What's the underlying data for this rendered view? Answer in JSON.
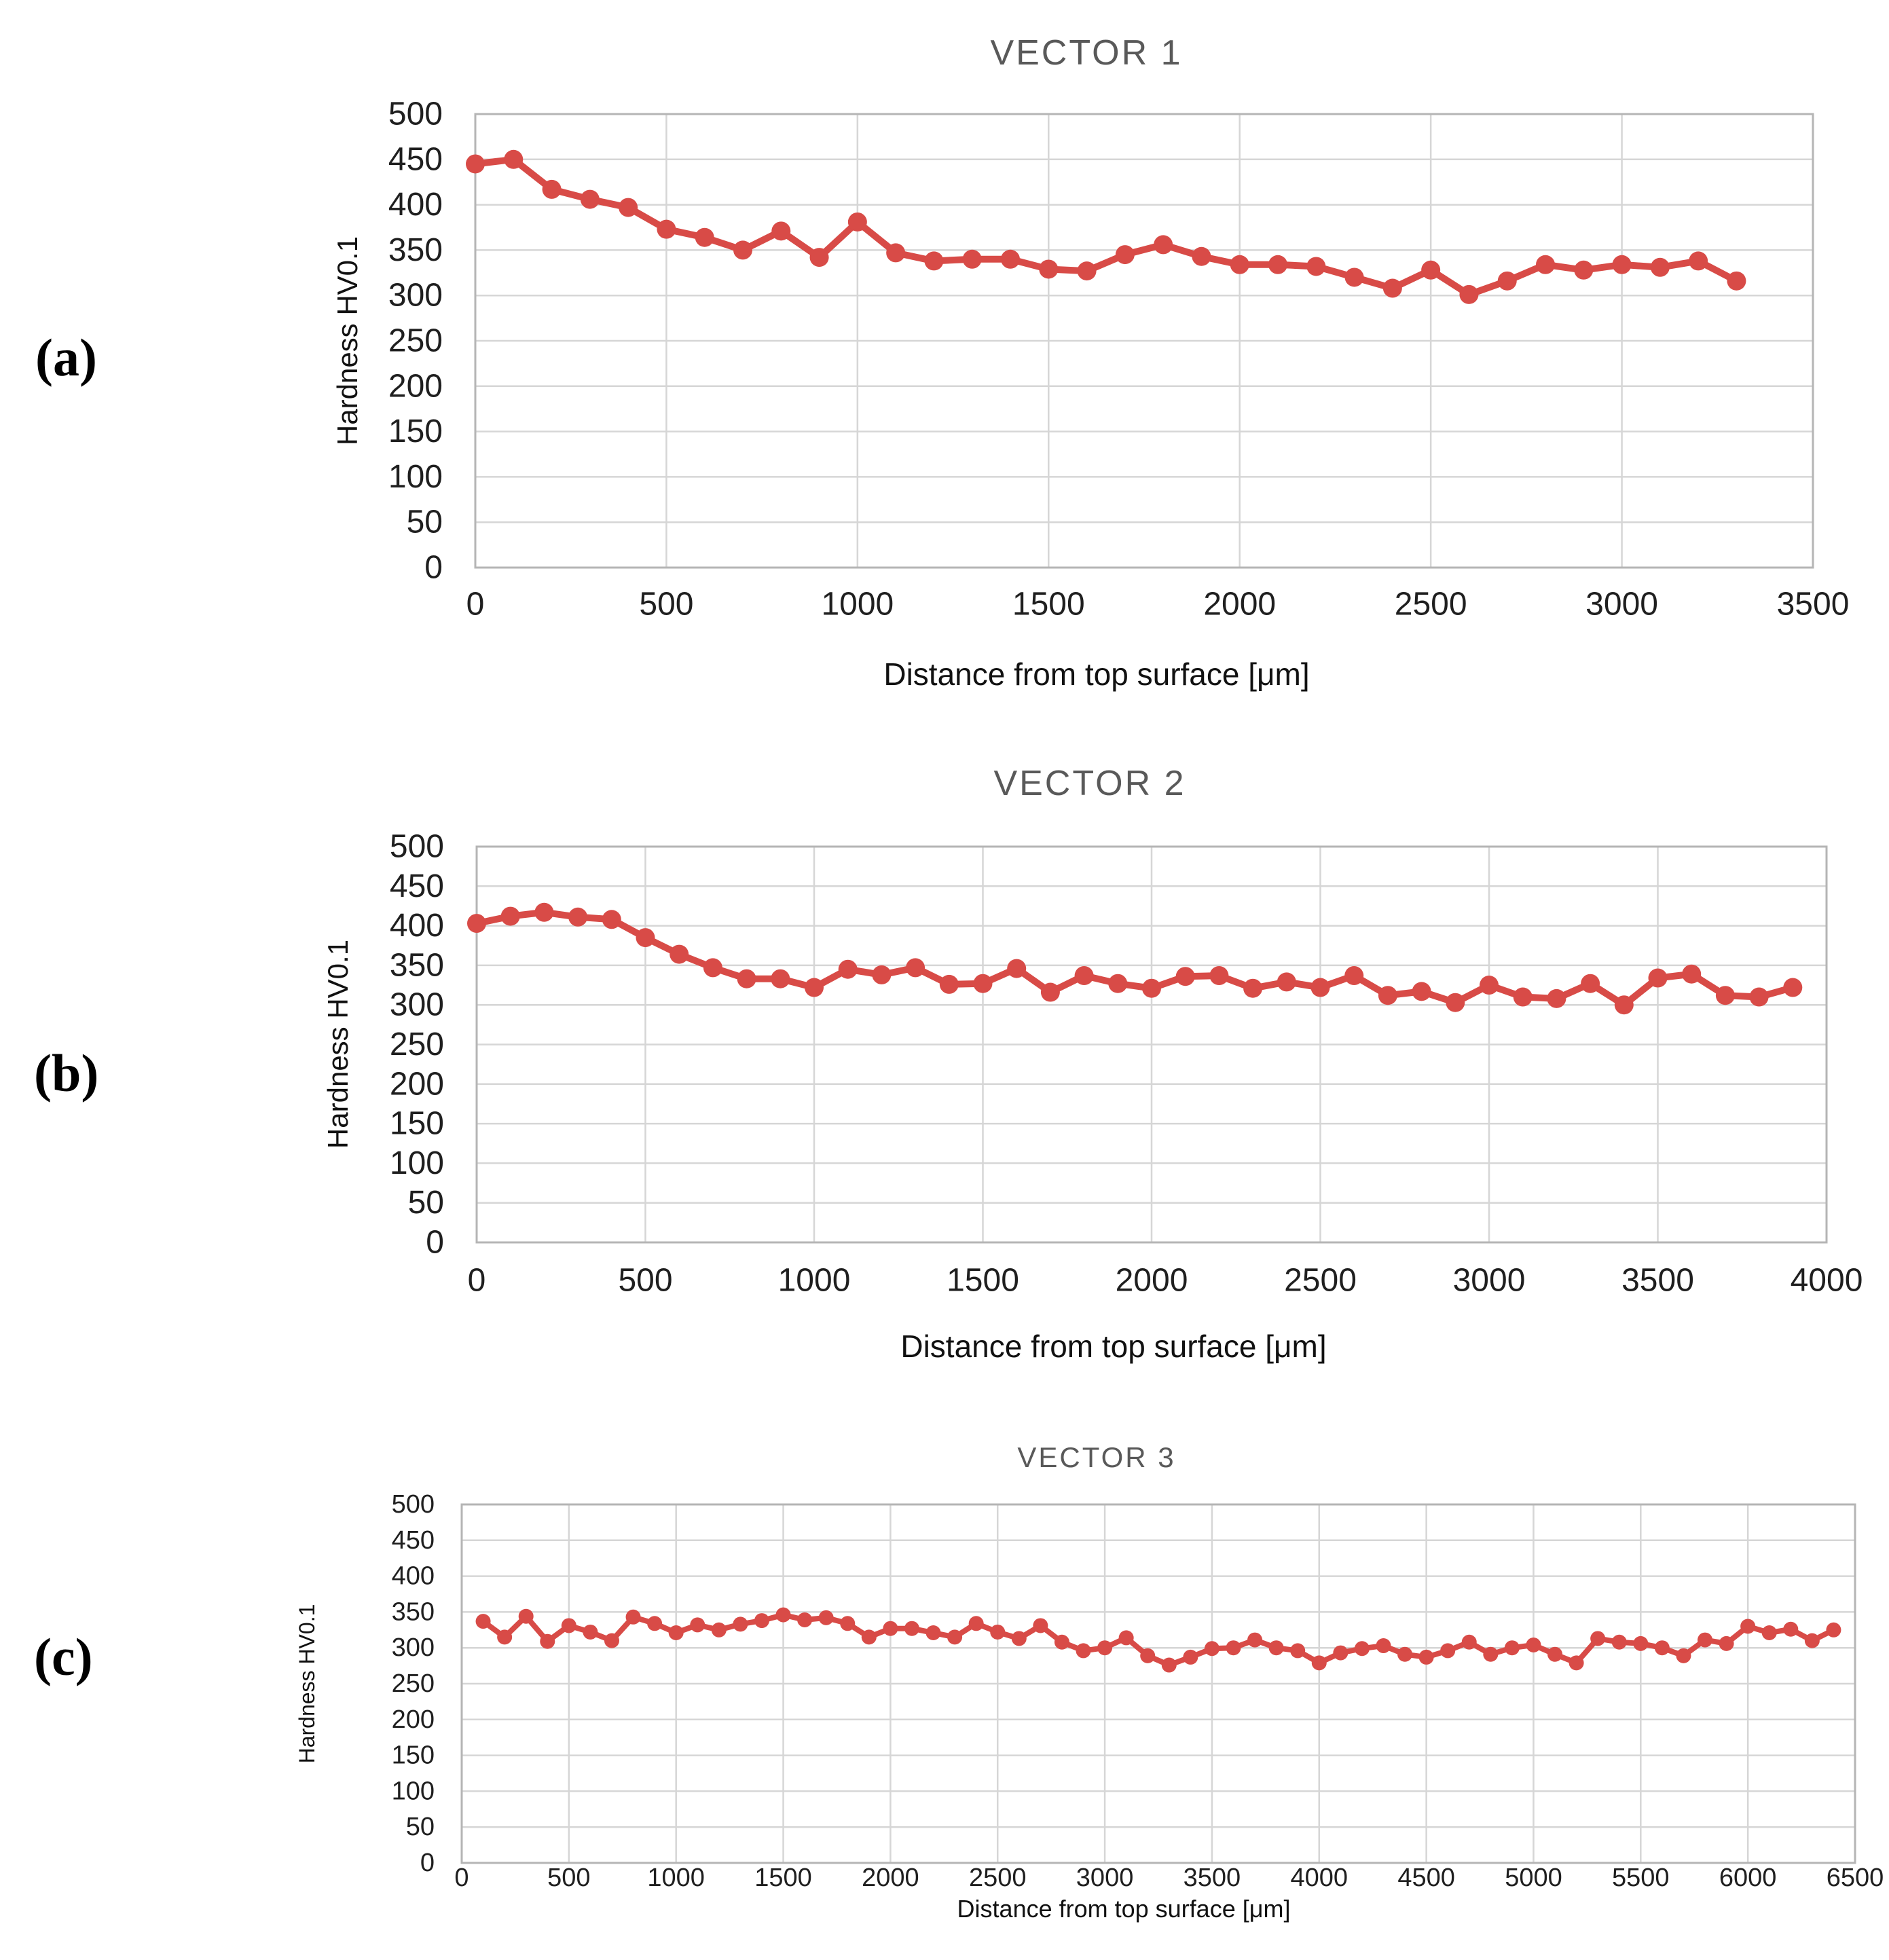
{
  "page": {
    "background": "#ffffff"
  },
  "colors": {
    "series": "#D84B47",
    "gridline": "#D6D6D6",
    "plot_border": "#B5B5B5",
    "tick_label": "#1F1F1F",
    "chart_title": "#595959",
    "axis_title": "#111111",
    "panel_label": "#000000"
  },
  "panels": [
    {
      "label": "(a)"
    },
    {
      "label": "(b)"
    },
    {
      "label": "(c)"
    }
  ],
  "chart_data": [
    {
      "type": "line",
      "title": "VECTOR 1",
      "xlabel": "Distance from top surface [μm]",
      "ylabel": "Hardness HV0.1",
      "xlim": [
        0,
        3500
      ],
      "ylim": [
        0,
        500
      ],
      "grid": true,
      "legend_position": "none",
      "marker": "circle",
      "series_color": "#D84B47",
      "xticks": [
        0,
        500,
        1000,
        1500,
        2000,
        2500,
        3000,
        3500
      ],
      "yticks": [
        0,
        50,
        100,
        150,
        200,
        250,
        300,
        350,
        400,
        450,
        500
      ],
      "x": [
        0,
        100,
        200,
        300,
        400,
        500,
        600,
        700,
        800,
        900,
        1000,
        1100,
        1200,
        1300,
        1400,
        1500,
        1600,
        1700,
        1800,
        1900,
        2000,
        2100,
        2200,
        2300,
        2400,
        2500,
        2600,
        2700,
        2800,
        2900,
        3000,
        3100,
        3200,
        3300
      ],
      "values": [
        445,
        450,
        417,
        406,
        397,
        373,
        364,
        350,
        371,
        342,
        381,
        347,
        338,
        340,
        340,
        329,
        327,
        345,
        356,
        343,
        334,
        334,
        332,
        320,
        308,
        328,
        301,
        316,
        334,
        328,
        334,
        331,
        338,
        316
      ]
    },
    {
      "type": "line",
      "title": "VECTOR 2",
      "xlabel": "Distance from top surface [μm]",
      "ylabel": "Hardness HV0.1",
      "xlim": [
        0,
        4000
      ],
      "ylim": [
        0,
        500
      ],
      "grid": true,
      "legend_position": "none",
      "marker": "circle",
      "series_color": "#D84B47",
      "xticks": [
        0,
        500,
        1000,
        1500,
        2000,
        2500,
        3000,
        3500,
        4000
      ],
      "yticks": [
        0,
        50,
        100,
        150,
        200,
        250,
        300,
        350,
        400,
        450,
        500
      ],
      "x": [
        0,
        100,
        200,
        300,
        400,
        500,
        600,
        700,
        800,
        900,
        1000,
        1100,
        1200,
        1300,
        1400,
        1500,
        1600,
        1700,
        1800,
        1900,
        2000,
        2100,
        2200,
        2300,
        2400,
        2500,
        2600,
        2700,
        2800,
        2900,
        3000,
        3100,
        3200,
        3300,
        3400,
        3500,
        3600,
        3700,
        3800,
        3900
      ],
      "values": [
        403,
        412,
        417,
        411,
        408,
        385,
        364,
        347,
        333,
        333,
        322,
        345,
        338,
        347,
        326,
        327,
        346,
        316,
        337,
        327,
        321,
        336,
        337,
        321,
        329,
        322,
        337,
        312,
        317,
        303,
        325,
        310,
        308,
        327,
        300,
        334,
        339,
        312,
        310,
        322
      ]
    },
    {
      "type": "line",
      "title": "VECTOR 3",
      "xlabel": "Distance from top surface [μm]",
      "ylabel": "Hardness HV0.1",
      "xlim": [
        0,
        6500
      ],
      "ylim": [
        0,
        500
      ],
      "grid": true,
      "legend_position": "none",
      "marker": "circle",
      "series_color": "#D84B47",
      "xticks": [
        0,
        500,
        1000,
        1500,
        2000,
        2500,
        3000,
        3500,
        4000,
        4500,
        5000,
        5500,
        6000,
        6500
      ],
      "yticks": [
        0,
        50,
        100,
        150,
        200,
        250,
        300,
        350,
        400,
        450,
        500
      ],
      "x": [
        100,
        200,
        300,
        400,
        500,
        600,
        700,
        800,
        900,
        1000,
        1100,
        1200,
        1300,
        1400,
        1500,
        1600,
        1700,
        1800,
        1900,
        2000,
        2100,
        2200,
        2300,
        2400,
        2500,
        2600,
        2700,
        2800,
        2900,
        3000,
        3100,
        3200,
        3300,
        3400,
        3500,
        3600,
        3700,
        3800,
        3900,
        4000,
        4100,
        4200,
        4300,
        4400,
        4500,
        4600,
        4700,
        4800,
        4900,
        5000,
        5100,
        5200,
        5300,
        5400,
        5500,
        5600,
        5700,
        5800,
        5900,
        6000,
        6100,
        6200,
        6300,
        6400
      ],
      "values": [
        337,
        315,
        344,
        309,
        331,
        322,
        310,
        343,
        334,
        321,
        332,
        325,
        333,
        338,
        346,
        339,
        342,
        334,
        315,
        327,
        327,
        321,
        315,
        334,
        322,
        313,
        331,
        308,
        296,
        300,
        314,
        289,
        276,
        287,
        299,
        300,
        311,
        300,
        296,
        279,
        293,
        299,
        303,
        291,
        287,
        296,
        308,
        291,
        300,
        304,
        291,
        279,
        313,
        308,
        306,
        300,
        289,
        311,
        306,
        330,
        321,
        326,
        310,
        325
      ]
    }
  ]
}
